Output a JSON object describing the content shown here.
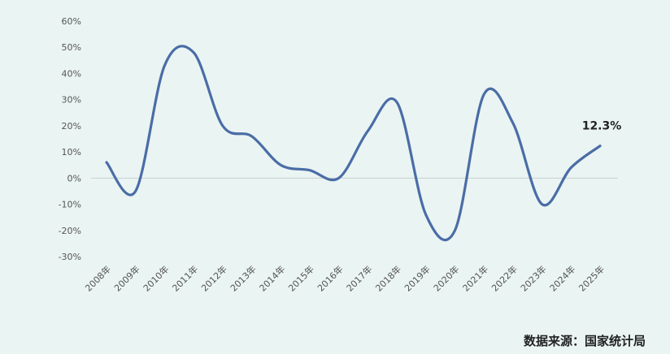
{
  "chart_data": {
    "type": "line",
    "title": "",
    "xlabel": "",
    "ylabel": "",
    "ylim": [
      -30,
      60
    ],
    "yticks": [
      60,
      50,
      40,
      30,
      20,
      10,
      0,
      -10,
      -20,
      -30
    ],
    "ytick_labels": [
      "60%",
      "50%",
      "40%",
      "30%",
      "20%",
      "10%",
      "0%",
      "-10%",
      "-20%",
      "-30%"
    ],
    "categories": [
      "2008年",
      "2009年",
      "2010年",
      "2011年",
      "2012年",
      "2013年",
      "2014年",
      "2015年",
      "2016年",
      "2017年",
      "2018年",
      "2019年",
      "2020年",
      "2021年",
      "2022年",
      "2023年",
      "2024年",
      "2025年"
    ],
    "series": [
      {
        "values": [
          6,
          -5,
          43,
          48,
          20,
          16,
          5,
          3,
          0,
          18,
          29,
          -14,
          -20,
          32,
          21,
          -10,
          4,
          12.3
        ],
        "color": "#4a6da6"
      }
    ],
    "grid": false,
    "zero_line": true,
    "annotations": [
      {
        "text": "12.3%",
        "category": "2025年",
        "value": 12.3
      }
    ]
  },
  "source_text": "数据来源：国家统计局"
}
